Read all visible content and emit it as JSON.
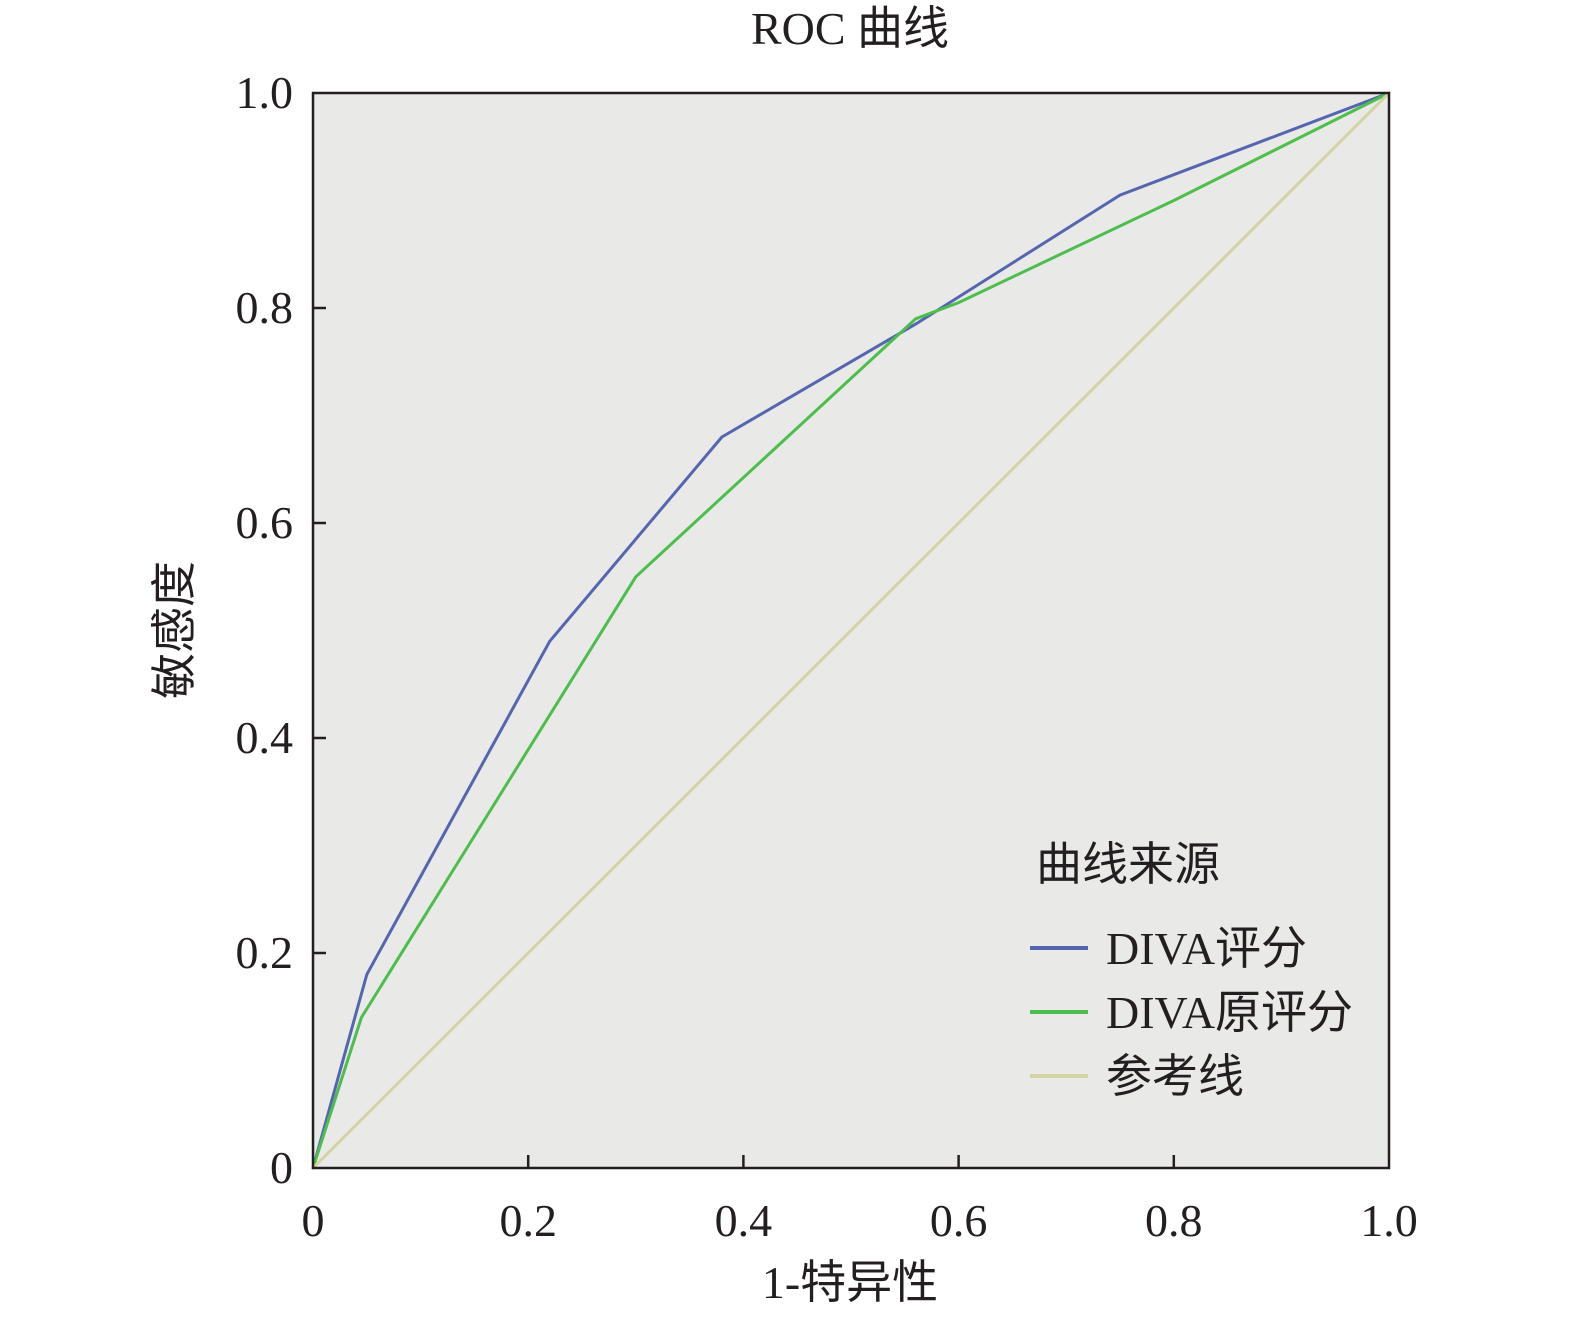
{
  "chart_data": {
    "type": "line",
    "title": "ROC 曲线",
    "xlabel": "1-特异性",
    "ylabel": "敏感度",
    "xlim": [
      0,
      1
    ],
    "ylim": [
      0,
      1
    ],
    "x_ticks": [
      "0",
      "0.2",
      "0.4",
      "0.6",
      "0.8",
      "1.0"
    ],
    "y_ticks": [
      "0",
      "0.2",
      "0.4",
      "0.6",
      "0.8",
      "1.0"
    ],
    "grid": false,
    "plot_background": "#e9e9e8",
    "legend": {
      "title": "曲线来源",
      "position": "bottom-right"
    },
    "series": [
      {
        "name": "DIVA评分",
        "color": "#5566b0",
        "points": [
          [
            0,
            0
          ],
          [
            0.05,
            0.18
          ],
          [
            0.22,
            0.49
          ],
          [
            0.38,
            0.68
          ],
          [
            0.56,
            0.785
          ],
          [
            0.75,
            0.905
          ],
          [
            1.0,
            1.0
          ]
        ]
      },
      {
        "name": "DIVA原评分",
        "color": "#4cbe4c",
        "points": [
          [
            0,
            0
          ],
          [
            0.045,
            0.14
          ],
          [
            0.3,
            0.55
          ],
          [
            0.56,
            0.79
          ],
          [
            0.6,
            0.805
          ],
          [
            0.8,
            0.9
          ],
          [
            1.0,
            1.0
          ]
        ]
      },
      {
        "name": "参考线",
        "color": "#d4d3a4",
        "points": [
          [
            0,
            0
          ],
          [
            1.0,
            1.0
          ]
        ]
      }
    ]
  }
}
